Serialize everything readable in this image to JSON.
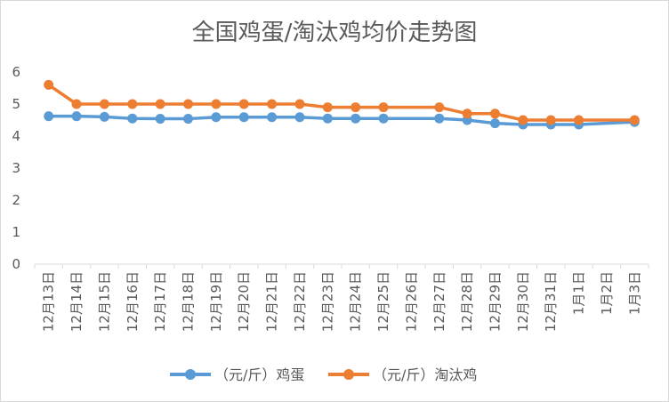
{
  "chart_data": {
    "type": "line",
    "title": "全国鸡蛋/淘汰鸡均价走势图",
    "categories": [
      "12月13日",
      "12月14日",
      "12月15日",
      "12月16日",
      "12月17日",
      "12月18日",
      "12月19日",
      "12月20日",
      "12月21日",
      "12月22日",
      "12月23日",
      "12月24日",
      "12月25日",
      "12月26日",
      "12月27日",
      "12月28日",
      "12月29日",
      "12月30日",
      "12月31日",
      "1月1日",
      "1月2日",
      "1月3日"
    ],
    "y_ticks": [
      "0",
      "1",
      "2",
      "3",
      "4",
      "5",
      "6"
    ],
    "ylim": [
      0,
      6
    ],
    "grid": false,
    "legend_position": "bottom",
    "series": [
      {
        "name": "（元/斤）鸡蛋",
        "color": "#5b9bd5",
        "values": [
          4.62,
          4.62,
          4.6,
          4.55,
          4.54,
          4.54,
          4.59,
          4.59,
          4.59,
          4.59,
          4.55,
          4.55,
          4.55,
          null,
          4.55,
          4.5,
          4.4,
          4.36,
          4.36,
          4.36,
          null,
          4.44
        ]
      },
      {
        "name": "（元/斤）淘汰鸡",
        "color": "#ed7d31",
        "values": [
          5.6,
          5.0,
          5.0,
          5.0,
          5.0,
          5.0,
          5.0,
          5.0,
          5.0,
          5.0,
          4.9,
          4.9,
          4.9,
          null,
          4.9,
          4.7,
          4.7,
          4.5,
          4.5,
          4.5,
          null,
          4.5
        ]
      }
    ]
  }
}
